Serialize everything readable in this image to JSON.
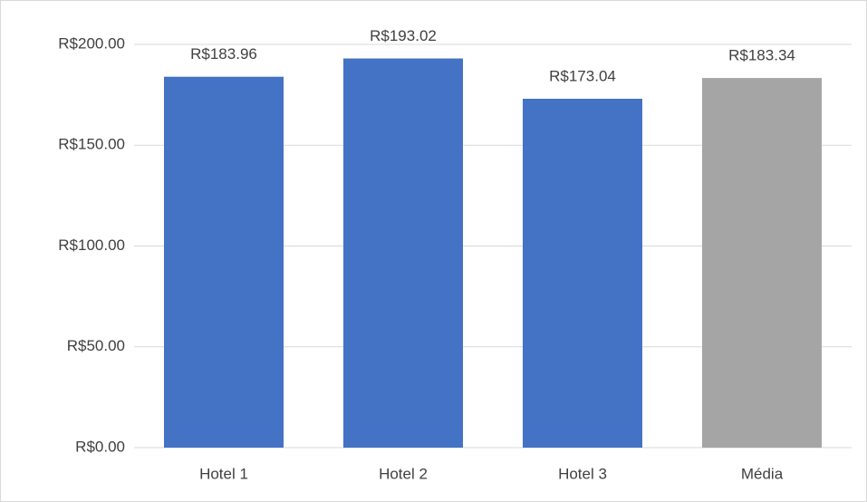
{
  "chart_data": {
    "type": "bar",
    "categories": [
      "Hotel 1",
      "Hotel 2",
      "Hotel 3",
      "Média"
    ],
    "values": [
      183.96,
      193.02,
      173.04,
      183.34
    ],
    "value_labels": [
      "R$183.96",
      "R$193.02",
      "R$173.04",
      "R$183.34"
    ],
    "colors": [
      "#4472c4",
      "#4472c4",
      "#4472c4",
      "#a5a5a5"
    ],
    "ylim": [
      0,
      200
    ],
    "yticks": [
      {
        "value": 0,
        "label": "R$0.00"
      },
      {
        "value": 50,
        "label": "R$50.00"
      },
      {
        "value": 100,
        "label": "R$100.00"
      },
      {
        "value": 150,
        "label": "R$150.00"
      },
      {
        "value": 200,
        "label": "R$200.00"
      }
    ],
    "grid": true
  }
}
